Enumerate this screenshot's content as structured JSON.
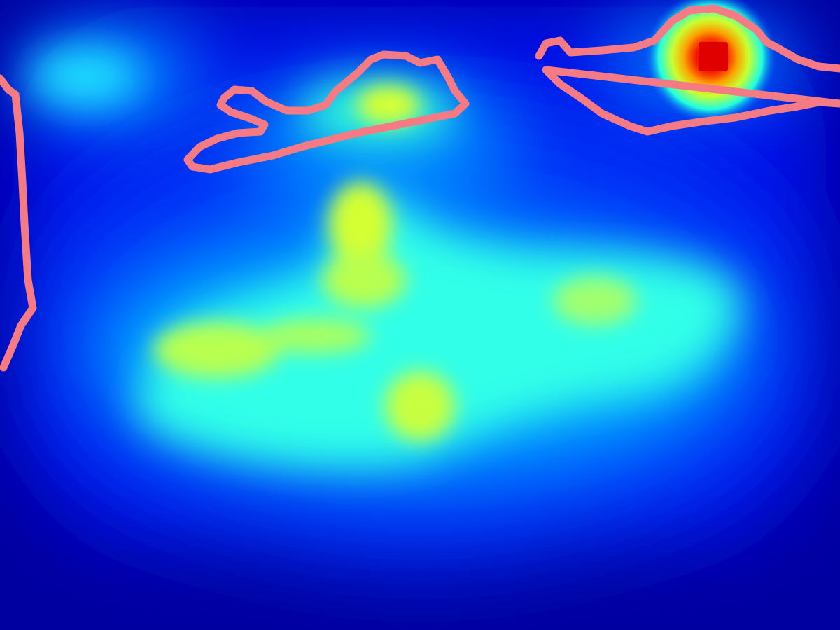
{
  "image": {
    "kind": "saliency-heatmap-overlay",
    "colormap": "jet",
    "background_color": "#0000a0",
    "contour_color": "#f67a84",
    "regions": [
      {
        "name": "lower-central-plateau",
        "intensity": 0.5
      },
      {
        "name": "upper-central-bump",
        "intensity": 0.55
      },
      {
        "name": "top-middle-contour-blob",
        "intensity": 0.52
      },
      {
        "name": "top-right-hotspot",
        "intensity": 1.0
      },
      {
        "name": "top-left-faint-blob",
        "intensity": 0.35
      }
    ]
  }
}
